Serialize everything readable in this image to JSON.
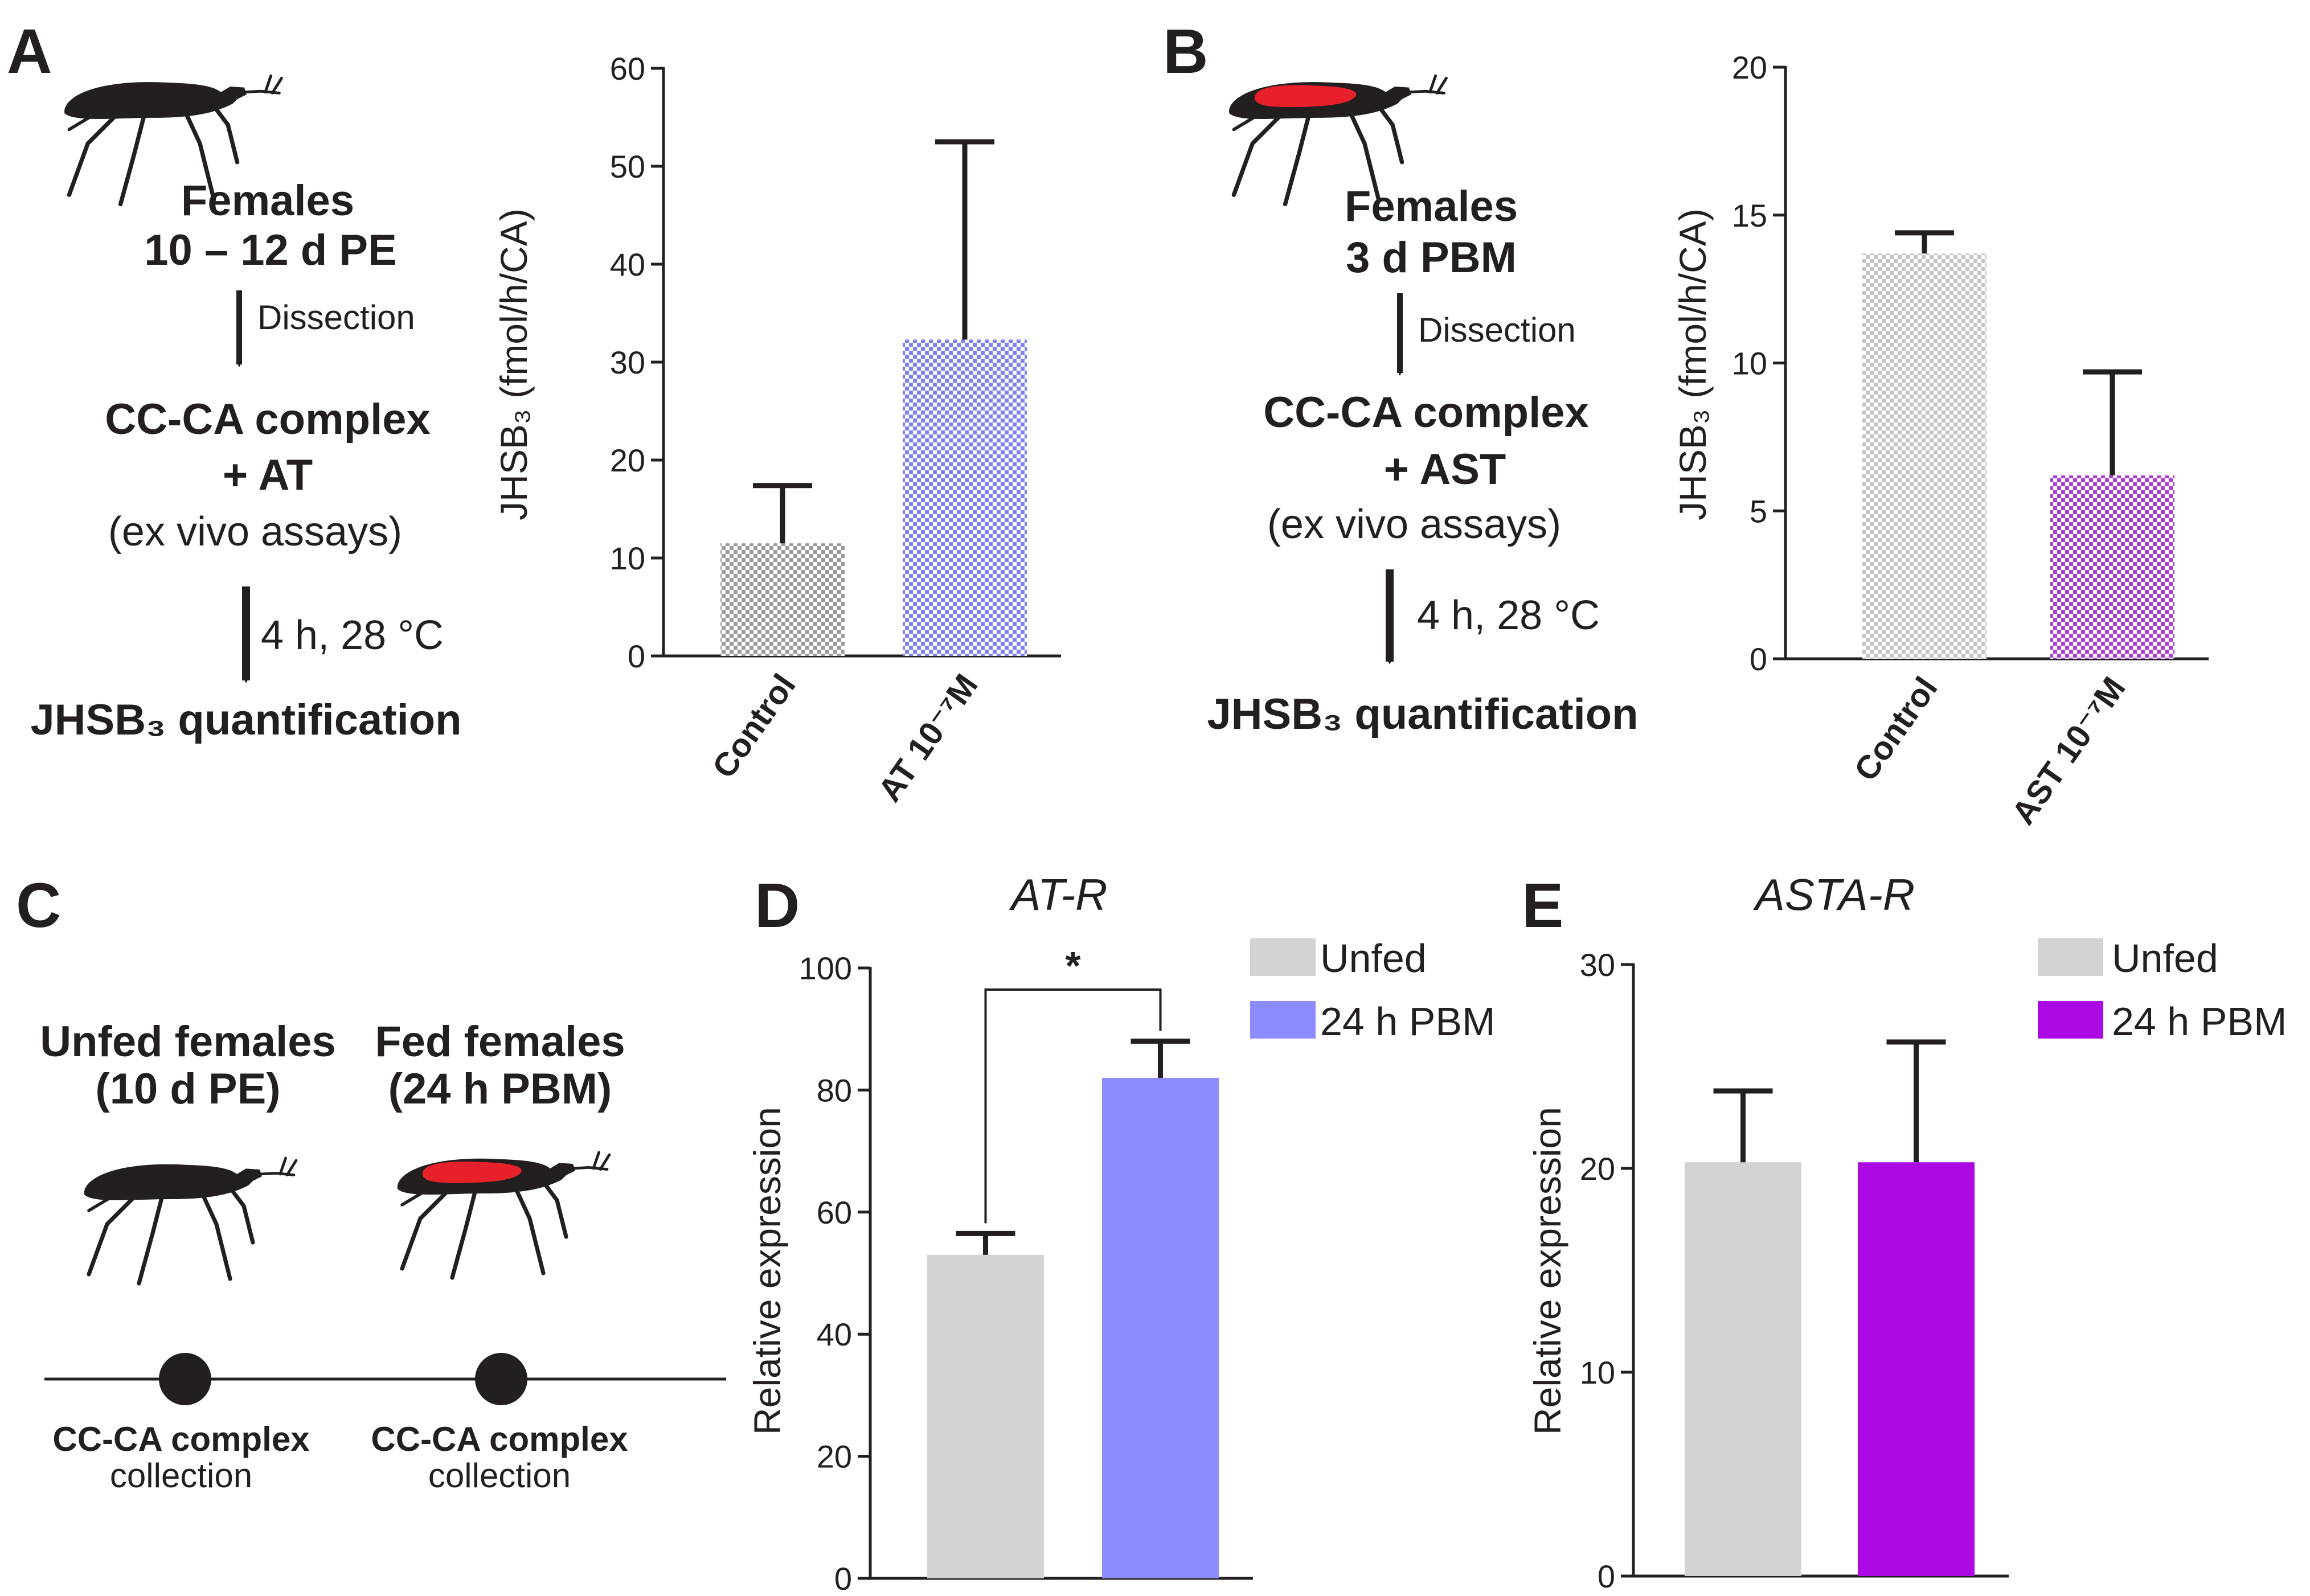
{
  "panels": {
    "A": {
      "letter": "A",
      "flow": {
        "line1": "Females",
        "line2": "10 – 12 d PE",
        "step1": "Dissection",
        "line3": "CC-CA complex",
        "line4": "+ AT",
        "line5": "(ex vivo assays)",
        "step2": "4 h, 28 °C",
        "line6": "JHSB₃ quantification"
      }
    },
    "B": {
      "letter": "B",
      "flow": {
        "line1": "Females",
        "line2": "3 d PBM",
        "step1": "Dissection",
        "line3": "CC-CA complex",
        "line4": "+ AST",
        "line5": "(ex vivo assays)",
        "step2": "4 h, 28 °C",
        "line6": "JHSB₃ quantification"
      }
    },
    "C": {
      "letter": "C",
      "unfed_title_1": "Unfed females",
      "unfed_title_2": "(10 d PE)",
      "fed_title_1": "Fed females",
      "fed_title_2": "(24 h PBM)",
      "collection_1a": "CC-CA complex",
      "collection_1b": "collection",
      "collection_2a": "CC-CA complex",
      "collection_2b": "collection"
    },
    "D": {
      "letter": "D"
    },
    "E": {
      "letter": "E"
    }
  },
  "colors": {
    "ink": "#231f20",
    "grey_pattern": "#9a9a9a",
    "blue_pattern": "#7f7ff5",
    "lightgrey_pattern": "#c4c4c4",
    "purple_pattern": "#b03cd6",
    "unfed": "#d3d3d3",
    "pbm_blue": "#8c8cff",
    "pbm_purple": "#aa0ae1",
    "blood": "#e8202a"
  },
  "chart_data": [
    {
      "id": "A",
      "type": "bar",
      "title": "",
      "ylabel": "JHSB₃ (fmol/h/CA)",
      "xlabel": "",
      "ylim": [
        0,
        60
      ],
      "yticks": [
        0,
        10,
        20,
        30,
        40,
        50,
        60
      ],
      "categories": [
        "Control",
        "AT 10⁻⁷M"
      ],
      "values": [
        11.5,
        32.3
      ],
      "errors": [
        5.9,
        20.2
      ],
      "fills": [
        "grey_pattern",
        "blue_pattern"
      ]
    },
    {
      "id": "B",
      "type": "bar",
      "title": "",
      "ylabel": "JHSB₃ (fmol/h/CA)",
      "xlabel": "",
      "ylim": [
        0,
        20
      ],
      "yticks": [
        0,
        5,
        10,
        15,
        20
      ],
      "categories": [
        "Control",
        "AST 10⁻⁷M"
      ],
      "values": [
        13.7,
        6.2
      ],
      "errors": [
        0.7,
        3.5
      ],
      "fills": [
        "lightgrey_pattern",
        "purple_pattern"
      ]
    },
    {
      "id": "D",
      "type": "bar",
      "title": "AT-R",
      "ylabel": "Relative expression",
      "xlabel": "",
      "ylim": [
        0,
        100
      ],
      "yticks": [
        0,
        20,
        40,
        60,
        80,
        100
      ],
      "categories": [
        "Unfed",
        "24 h PBM"
      ],
      "values": [
        53,
        82
      ],
      "errors": [
        3.5,
        6
      ],
      "fills": [
        "unfed",
        "pbm_blue"
      ],
      "legend": [
        "Unfed",
        "24 h PBM"
      ],
      "significance": "*"
    },
    {
      "id": "E",
      "type": "bar",
      "title": "ASTA-R",
      "ylabel": "Relative expression",
      "xlabel": "",
      "ylim": [
        0,
        30
      ],
      "yticks": [
        0,
        10,
        20,
        30
      ],
      "categories": [
        "Unfed",
        "24 h PBM"
      ],
      "values": [
        20.3,
        20.3
      ],
      "errors": [
        3.5,
        5.9
      ],
      "fills": [
        "unfed",
        "pbm_purple"
      ],
      "legend": [
        "Unfed",
        "24 h PBM"
      ]
    }
  ]
}
